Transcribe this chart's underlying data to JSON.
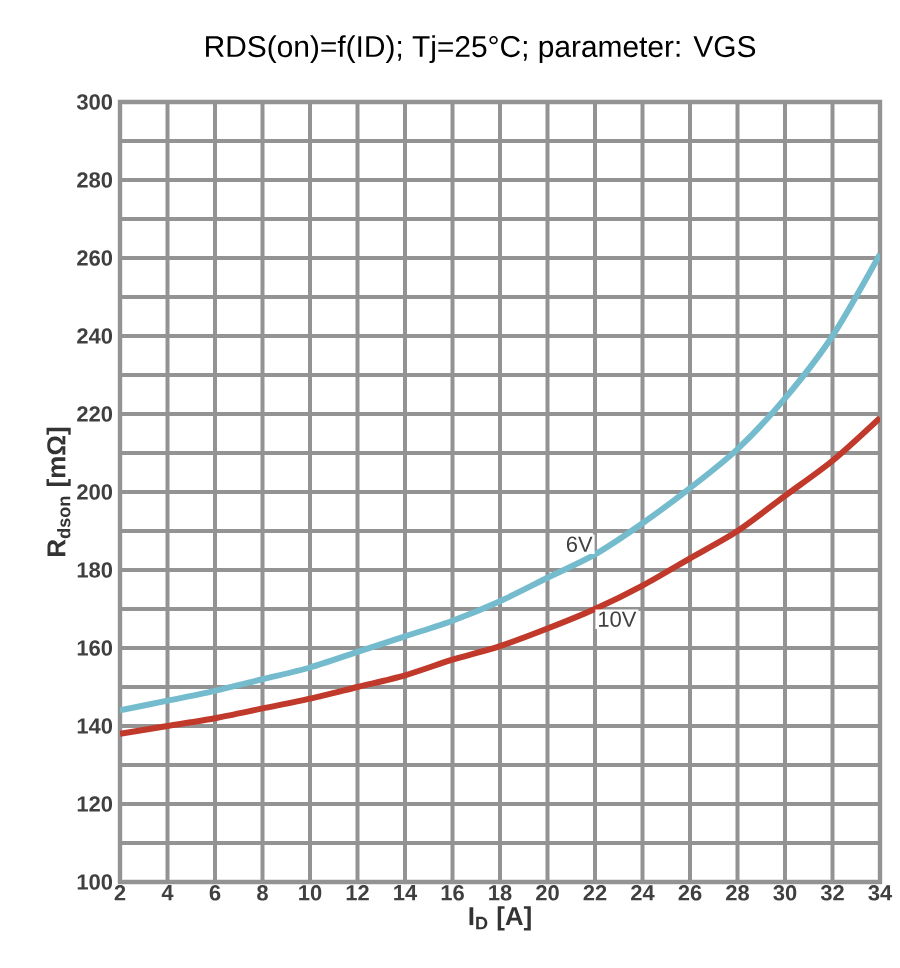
{
  "chart_data": {
    "type": "line",
    "title": "RDS(on)=f(ID); Tj=25°C; parameter: VGS",
    "xlabel": "I$_{D}$ [A]",
    "ylabel": "R$_{dson}$ [mΩ]",
    "xlim": [
      2,
      34
    ],
    "xticks": [
      2,
      4,
      6,
      8,
      10,
      12,
      14,
      16,
      18,
      20,
      22,
      24,
      26,
      28,
      30,
      32,
      34
    ],
    "ylim": [
      100,
      300
    ],
    "yticks": [
      100,
      {
        "value": 110,
        "label": null
      },
      120,
      {
        "value": 130,
        "label": null
      },
      140,
      {
        "value": 150,
        "label": null
      },
      160,
      {
        "value": 170,
        "label": null
      },
      180,
      {
        "value": 190,
        "label": null
      },
      200,
      {
        "value": 210,
        "label": null
      },
      220,
      {
        "value": 230,
        "label": null
      },
      240,
      {
        "value": 250,
        "label": null
      },
      260,
      {
        "value": 270,
        "label": null
      },
      280,
      {
        "value": 290,
        "label": null
      },
      300
    ],
    "grid": true,
    "legend": false,
    "marker": "none",
    "line_style": "solid",
    "x": [
      2,
      4,
      6,
      8,
      10,
      12,
      14,
      16,
      18,
      20,
      22,
      24,
      26,
      28,
      30,
      32,
      34
    ],
    "series": [
      {
        "name": "6V",
        "color": "#74bccd",
        "values": [
          144,
          146.5,
          149,
          152,
          155,
          159,
          163,
          167,
          172,
          178,
          184,
          192,
          201,
          211,
          224,
          240,
          261
        ]
      },
      {
        "name": "10V",
        "color": "#c0392b",
        "values": [
          138,
          140,
          142,
          144.5,
          147,
          150,
          153,
          157,
          160.5,
          165,
          170,
          176,
          183,
          190,
          199,
          208,
          219
        ]
      }
    ]
  }
}
